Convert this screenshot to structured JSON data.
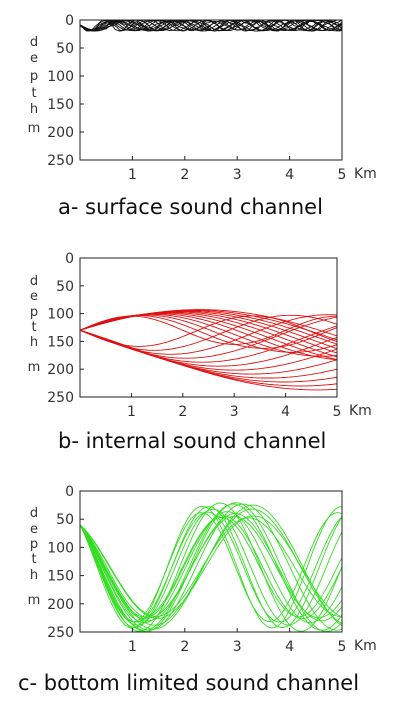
{
  "chart_data": [
    {
      "type": "line",
      "title": "a- surface sound channel",
      "xlabel": "Km",
      "ylabel": [
        "d",
        "e",
        "p",
        "t",
        "h",
        "m"
      ],
      "xlim": [
        0,
        5
      ],
      "ylim": [
        250,
        0
      ],
      "x_ticks": [
        "1",
        "2",
        "3",
        "4",
        "5"
      ],
      "y_ticks": [
        "0",
        "50",
        "100",
        "150",
        "200",
        "250"
      ],
      "colors": {
        "rays": "#111111"
      },
      "ray_family": {
        "source_depth": 8,
        "count": 12,
        "depth_min": 0,
        "depth_max": 20,
        "cycle_km": [
          0.6,
          1.2
        ]
      }
    },
    {
      "type": "line",
      "title": "b- internal sound channel",
      "xlabel": "Km",
      "ylabel": [
        "d",
        "e",
        "p",
        "t",
        "h",
        "m"
      ],
      "xlim": [
        0,
        5
      ],
      "ylim": [
        250,
        0
      ],
      "x_ticks": [
        "1",
        "2",
        "3",
        "4",
        "5"
      ],
      "y_ticks": [
        "0",
        "50",
        "100",
        "150",
        "200",
        "250"
      ],
      "colors": {
        "rays": "#e01010"
      },
      "ray_family": {
        "source_depth": 130,
        "count": 24,
        "depth_min": 85,
        "depth_max": 230,
        "cycle_km": [
          4,
          14
        ]
      }
    },
    {
      "type": "line",
      "title": "c- bottom limited sound channel",
      "xlabel": "Km",
      "ylabel": [
        "d",
        "e",
        "p",
        "t",
        "h",
        "m"
      ],
      "xlim": [
        0,
        5
      ],
      "ylim": [
        250,
        0
      ],
      "x_ticks": [
        "1",
        "2",
        "3",
        "4",
        "5"
      ],
      "y_ticks": [
        "0",
        "50",
        "100",
        "150",
        "200",
        "250"
      ],
      "colors": {
        "rays": "#33dd22"
      },
      "ray_family": {
        "source_depth": 60,
        "count": 18,
        "depth_min": 20,
        "depth_max": 250,
        "cycle_km": [
          2.6,
          3.8
        ]
      }
    }
  ]
}
